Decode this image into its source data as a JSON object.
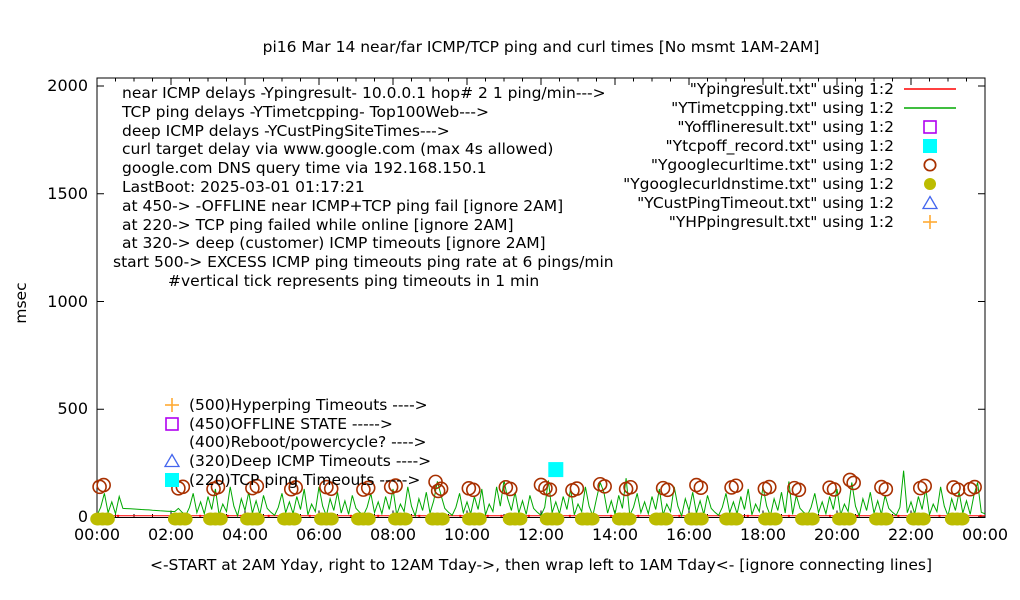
{
  "title": "pi16 Mar 14  near/far ICMP/TCP ping and curl times [No msmt 1AM-2AM]",
  "axes": {
    "y_label": "msec",
    "y_ticks": [
      0,
      500,
      1000,
      1500,
      2000
    ],
    "x_ticks": [
      "00:00",
      "02:00",
      "04:00",
      "06:00",
      "08:00",
      "10:00",
      "12:00",
      "14:00",
      "16:00",
      "18:00",
      "20:00",
      "22:00",
      "00:00"
    ],
    "x_label": "<-START at 2AM Yday, right to 12AM Tday->, then wrap left to 1AM Tday<- [ignore connecting lines]"
  },
  "annotations": [
    {
      "text": "near ICMP delays -Ypingresult- 10.0.0.1 hop# 2 1 ping/min--->",
      "x": 122
    },
    {
      "text": "TCP ping delays -YTimetcpping- Top100Web--->",
      "x": 122
    },
    {
      "text": "deep ICMP delays -YCustPingSiteTimes--->",
      "x": 122
    },
    {
      "text": "curl target delay via www.google.com (max 4s allowed)",
      "x": 122
    },
    {
      "text": "google.com DNS query time via 192.168.150.1",
      "x": 122
    },
    {
      "text": "LastBoot: 2025-03-01 01:17:21",
      "x": 122
    },
    {
      "text": "at 450-> -OFFLINE near ICMP+TCP ping fail [ignore 2AM]",
      "x": 122
    },
    {
      "text": "at 220-> TCP ping failed while online [ignore 2AM]",
      "x": 122
    },
    {
      "text": "at 320-> deep (customer) ICMP timeouts [ignore 2AM]",
      "x": 122
    },
    {
      "text": "start 500-> EXCESS ICMP ping timeouts ping rate at 6 pings/min",
      "x": 113
    },
    {
      "text": "#vertical tick represents ping timeouts in 1 min",
      "x": 168
    }
  ],
  "callouts": [
    {
      "marker": "plus",
      "color": "#ffaa33",
      "text": "(500)Hyperping Timeouts ---->"
    },
    {
      "marker": "open-square",
      "color": "#b000f0",
      "text": "(450)OFFLINE STATE ----->"
    },
    {
      "marker": "none",
      "color": "",
      "text": "(400)Reboot/powercycle? ---->"
    },
    {
      "marker": "open-triangle",
      "color": "#4466ee",
      "text": "(320)Deep ICMP Timeouts ---->"
    },
    {
      "marker": "filled-square",
      "color": "#00ffff",
      "text": "(220)TCP ping Timeouts ----->"
    }
  ],
  "legend": [
    {
      "label": "\"Ypingresult.txt\" using 1:2",
      "marker": "line",
      "color": "#ff0000"
    },
    {
      "label": "\"YTimetcpping.txt\" using 1:2",
      "marker": "line",
      "color": "#00a800"
    },
    {
      "label": "\"Yofflineresult.txt\" using 1:2",
      "marker": "open-square",
      "color": "#b000f0"
    },
    {
      "label": "\"Ytcpoff_record.txt\" using 1:2",
      "marker": "filled-square",
      "color": "#00ffff"
    },
    {
      "label": "\"Ygooglecurltime.txt\" using 1:2",
      "marker": "open-circle",
      "color": "#a83000"
    },
    {
      "label": "\"Ygooglecurldnstime.txt\" using 1:2",
      "marker": "filled-circle",
      "color": "#bcbc00"
    },
    {
      "label": "\"YCustPingTimeout.txt\" using 1:2",
      "marker": "open-triangle",
      "color": "#4466ee"
    },
    {
      "label": "\"YHPpingresult.txt\" using 1:2",
      "marker": "plus",
      "color": "#ffaa33"
    }
  ],
  "chart_data": {
    "type": "line",
    "x_unit": "hours_of_day",
    "x_range": [
      0,
      24
    ],
    "y_range": [
      0,
      2070
    ],
    "ylabel": "msec",
    "grid": false,
    "legend_position": "top-right-outside-plot-text-inside",
    "series": [
      {
        "name": "Ypingresult.txt",
        "style": "line",
        "color": "#ff0000",
        "description": "near ICMP ping, flat baseline",
        "baseline_msec": 6
      },
      {
        "name": "YTimetcpping.txt",
        "style": "line",
        "color": "#00a800",
        "description": "TCP ping delays, noisy grass 0-180 msec; straight connecting line across 0.7h-2.1h no-measurement gap",
        "sample_interval_h": 0.1,
        "values": [
          8,
          45,
          110,
          20,
          70,
          15,
          95,
          40,
          39,
          38,
          37,
          36,
          35,
          34,
          33,
          31,
          30,
          29,
          28,
          27,
          26,
          25,
          40,
          22,
          8,
          45,
          110,
          20,
          70,
          15,
          95,
          35,
          130,
          10,
          60,
          25,
          140,
          50,
          5,
          85,
          30,
          115,
          18,
          75,
          12,
          100,
          40,
          22,
          8,
          45,
          110,
          20,
          70,
          15,
          95,
          35,
          130,
          10,
          60,
          25,
          140,
          50,
          5,
          85,
          30,
          115,
          18,
          75,
          12,
          100,
          40,
          22,
          8,
          45,
          110,
          20,
          70,
          15,
          95,
          35,
          130,
          10,
          60,
          25,
          140,
          50,
          5,
          85,
          30,
          115,
          18,
          75,
          165,
          100,
          40,
          22,
          8,
          45,
          110,
          20,
          70,
          15,
          95,
          35,
          130,
          10,
          60,
          25,
          140,
          50,
          170,
          85,
          30,
          115,
          18,
          75,
          12,
          100,
          40,
          22,
          8,
          45,
          170,
          20,
          70,
          15,
          95,
          35,
          130,
          10,
          60,
          25,
          140,
          50,
          5,
          85,
          160,
          115,
          18,
          75,
          12,
          100,
          40,
          180,
          8,
          45,
          110,
          20,
          70,
          15,
          95,
          35,
          130,
          10,
          60,
          25,
          140,
          50,
          5,
          85,
          30,
          115,
          18,
          75,
          12,
          100,
          40,
          22,
          8,
          45,
          110,
          20,
          70,
          15,
          95,
          35,
          130,
          10,
          60,
          25,
          140,
          50,
          5,
          85,
          30,
          115,
          18,
          165,
          12,
          100,
          40,
          22,
          8,
          45,
          110,
          20,
          70,
          15,
          95,
          35,
          130,
          10,
          60,
          25,
          160,
          50,
          5,
          85,
          30,
          115,
          18,
          75,
          12,
          100,
          40,
          22,
          8,
          45,
          215,
          20,
          70,
          15,
          95,
          35,
          130,
          10,
          60,
          25,
          140,
          50,
          5,
          85,
          30,
          115,
          18,
          75,
          12,
          100,
          160,
          22,
          15
        ]
      },
      {
        "name": "Yofflineresult.txt",
        "style": "open-square",
        "color": "#b000f0",
        "points": []
      },
      {
        "name": "Ytcpoff_record.txt",
        "style": "filled-square",
        "color": "#00ffff",
        "points": [
          [
            12.4,
            220
          ]
        ]
      },
      {
        "name": "Ygooglecurltime.txt",
        "style": "open-circle",
        "color": "#a83000",
        "description": "curl time to www.google.com, pairs of points ~110-175 msec roughly every 30-60 min",
        "points": [
          [
            0.07,
            140
          ],
          [
            0.18,
            148
          ],
          [
            2.2,
            133
          ],
          [
            2.32,
            140
          ],
          [
            3.15,
            130
          ],
          [
            3.27,
            139
          ],
          [
            4.2,
            134
          ],
          [
            4.32,
            143
          ],
          [
            5.25,
            129
          ],
          [
            5.37,
            137
          ],
          [
            6.2,
            139
          ],
          [
            6.33,
            131
          ],
          [
            7.2,
            127
          ],
          [
            7.33,
            135
          ],
          [
            7.95,
            139
          ],
          [
            8.07,
            146
          ],
          [
            9.15,
            163
          ],
          [
            9.22,
            121
          ],
          [
            9.3,
            131
          ],
          [
            10.05,
            133
          ],
          [
            10.17,
            126
          ],
          [
            11.05,
            138
          ],
          [
            11.17,
            130
          ],
          [
            12.0,
            149
          ],
          [
            12.12,
            134
          ],
          [
            12.24,
            127
          ],
          [
            12.85,
            124
          ],
          [
            12.97,
            132
          ],
          [
            13.6,
            152
          ],
          [
            13.72,
            142
          ],
          [
            14.3,
            130
          ],
          [
            14.42,
            138
          ],
          [
            15.3,
            134
          ],
          [
            15.42,
            126
          ],
          [
            16.2,
            148
          ],
          [
            16.32,
            136
          ],
          [
            17.15,
            137
          ],
          [
            17.27,
            145
          ],
          [
            18.05,
            131
          ],
          [
            18.17,
            139
          ],
          [
            18.85,
            134
          ],
          [
            18.97,
            126
          ],
          [
            19.8,
            136
          ],
          [
            19.92,
            128
          ],
          [
            20.35,
            172
          ],
          [
            20.45,
            158
          ],
          [
            21.2,
            139
          ],
          [
            21.32,
            129
          ],
          [
            22.25,
            134
          ],
          [
            22.37,
            144
          ],
          [
            23.15,
            137
          ],
          [
            23.27,
            127
          ],
          [
            23.6,
            129
          ],
          [
            23.72,
            139
          ]
        ]
      },
      {
        "name": "Ygooglecurldnstime.txt",
        "style": "filled-circle",
        "color": "#bcbc00",
        "description": "google.com DNS query time, ~0 msec blobs about every hour (none 1AM-2AM)",
        "cluster_y_msec": 0,
        "cluster_x_hours": [
          0.15,
          2.25,
          3.2,
          4.2,
          5.2,
          6.2,
          7.2,
          8.2,
          9.2,
          10.2,
          11.3,
          12.3,
          13.25,
          14.25,
          15.25,
          16.2,
          17.15,
          18.2,
          19.2,
          20.2,
          21.2,
          22.2,
          23.25
        ]
      },
      {
        "name": "YCustPingTimeout.txt",
        "style": "open-triangle",
        "color": "#4466ee",
        "points": []
      },
      {
        "name": "YHPpingresult.txt",
        "style": "plus",
        "color": "#ffaa33",
        "points": []
      }
    ]
  }
}
